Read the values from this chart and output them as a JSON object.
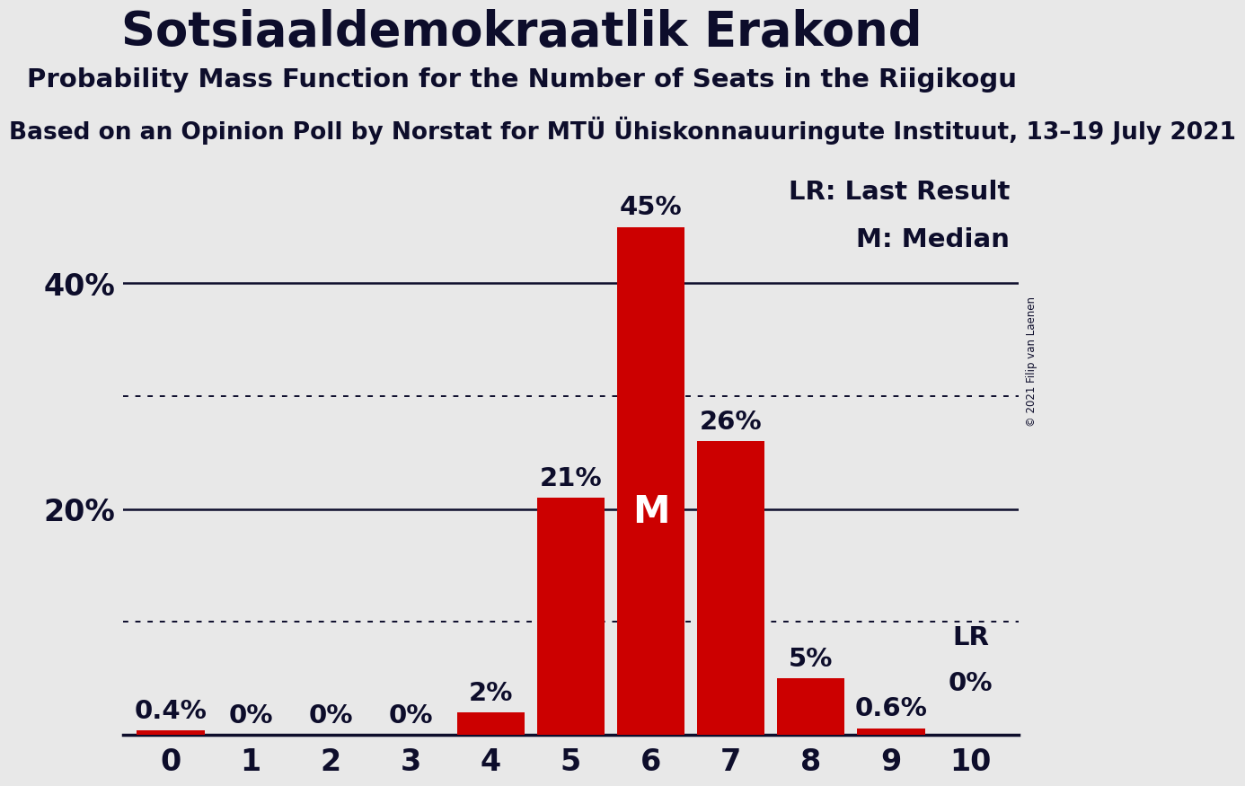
{
  "title": "Sotsiaaldemokraatlik Erakond",
  "subtitle": "Probability Mass Function for the Number of Seats in the Riigikogu",
  "source": "Based on an Opinion Poll by Norstat for MTÜ Ühiskonnauuringute Instituut, 13–19 July 2021",
  "copyright": "© 2021 Filip van Laenen",
  "categories": [
    0,
    1,
    2,
    3,
    4,
    5,
    6,
    7,
    8,
    9,
    10
  ],
  "values": [
    0.4,
    0.0,
    0.0,
    0.0,
    2.0,
    21.0,
    45.0,
    26.0,
    5.0,
    0.6,
    0.0
  ],
  "bar_color": "#cc0000",
  "bar_labels": [
    "0.4%",
    "0%",
    "0%",
    "0%",
    "2%",
    "21%",
    "45%",
    "26%",
    "5%",
    "0.6%",
    "0%"
  ],
  "median_bar": 6,
  "lr_bar": 10,
  "median_label": "M",
  "lr_label": "LR",
  "ylim": [
    0,
    50
  ],
  "solid_gridlines": [
    20,
    40
  ],
  "dotted_gridlines": [
    10,
    30
  ],
  "background_color": "#e8e8e8",
  "title_fontsize": 38,
  "subtitle_fontsize": 21,
  "source_fontsize": 19,
  "bar_label_fontsize": 21,
  "ytick_fontsize": 24,
  "xtick_fontsize": 24,
  "legend_fontsize": 21,
  "median_label_fontsize": 30,
  "text_color": "#0d0d2b"
}
